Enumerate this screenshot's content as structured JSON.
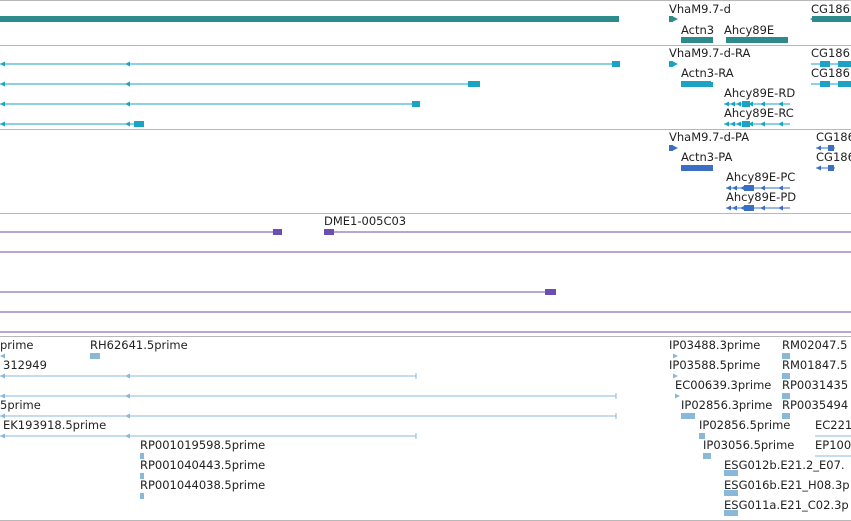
{
  "colors": {
    "gene": "#2e8b8b",
    "transcript": "#1aa3c4",
    "protein": "#3b6fc4",
    "clone": "#6a4fb0",
    "est": "#8ab8d8",
    "separator": "#b8b8b8"
  },
  "tracks": {
    "gene": {
      "labels": [
        "VhaM9.7-d",
        "CG186",
        "Actn3",
        "Ahcy89E"
      ]
    },
    "transcript": {
      "labels": [
        "VhaM9.7-d-RA",
        "CG186",
        "Actn3-RA",
        "CG186",
        "Ahcy89E-RD",
        "Ahcy89E-RC"
      ]
    },
    "protein": {
      "labels": [
        "VhaM9.7-d-PA",
        "CG186",
        "Actn3-PA",
        "CG186",
        "Ahcy89E-PC",
        "Ahcy89E-PD"
      ]
    },
    "clone": {
      "labels": [
        "DME1-005C03"
      ]
    },
    "est": {
      "labels": [
        "prime",
        "RH62641.5prime",
        "IP03488.3prime",
        "RM02047.5",
        "312949",
        "IP03588.5prime",
        "RM01847.5",
        "EC00639.3prime",
        "RP0031435",
        "5prime",
        "IP02856.3prime",
        "RP0035494",
        "EK193918.5prime",
        "IP02856.5prime",
        "EC221",
        "RP001019598.5prime",
        "IP03056.5prime",
        "EP100",
        "RP001040443.5prime",
        "ESG012b.E21.2_E07.",
        "RP001044038.5prime",
        "ESG016b.E21_H08.3p",
        "ESG011a.E21_C02.3p"
      ]
    }
  }
}
